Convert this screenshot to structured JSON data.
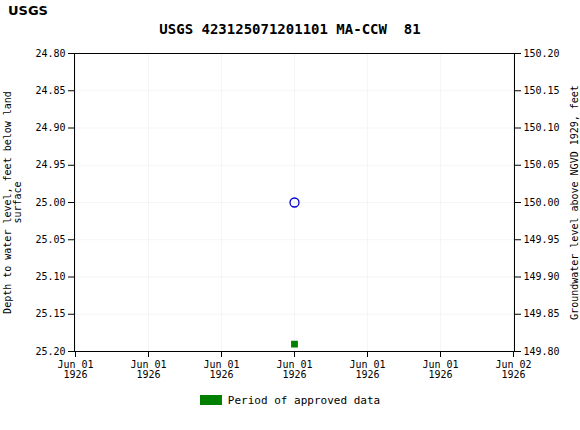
{
  "chart_data": {
    "type": "scatter",
    "title": "USGS 423125071201101 MA-CCW  81",
    "annotations": [
      "USGS"
    ],
    "y_label": "Depth to water level, feet below land\nsurface",
    "y2_label": "Groundwater level above NGVD 1929, feet",
    "categories": [
      "Jun 01\n1926",
      "Jun 01\n1926",
      "Jun 01\n1926",
      "Jun 01\n1926",
      "Jun 01\n1926",
      "Jun 01\n1926",
      "Jun 02\n1926"
    ],
    "series": [
      {
        "values": [
          null,
          null,
          null,
          25.0,
          null,
          null,
          null
        ],
        "color": "#0000cc",
        "marker": "circle"
      },
      {
        "name": "Period of approved data",
        "values": [
          null,
          null,
          null,
          25.19,
          null,
          null,
          null
        ],
        "color": "#008000",
        "marker": "square"
      }
    ],
    "ylim": [
      25.2,
      24.8
    ],
    "yticks": [
      {
        "value": 24.8,
        "label": "24.80"
      },
      {
        "value": 24.85,
        "label": "24.85"
      },
      {
        "value": 24.9,
        "label": "24.90"
      },
      {
        "value": 24.95,
        "label": "24.95"
      },
      {
        "value": 25.0,
        "label": "25.00"
      },
      {
        "value": 25.05,
        "label": "25.05"
      },
      {
        "value": 25.1,
        "label": "25.10"
      },
      {
        "value": 25.15,
        "label": "25.15"
      },
      {
        "value": 25.2,
        "label": "25.20"
      }
    ],
    "y2lim": [
      149.8,
      150.2
    ],
    "y2ticks": [
      {
        "value": 150.2,
        "label": "150.20"
      },
      {
        "value": 150.15,
        "label": "150.15"
      },
      {
        "value": 150.1,
        "label": "150.10"
      },
      {
        "value": 150.05,
        "label": "150.05"
      },
      {
        "value": 150.0,
        "label": "150.00"
      },
      {
        "value": 149.95,
        "label": "149.95"
      },
      {
        "value": 149.9,
        "label": "149.90"
      },
      {
        "value": 149.85,
        "label": "149.85"
      },
      {
        "value": 149.8,
        "label": "149.80"
      }
    ],
    "grid": true,
    "legend": "bottom"
  }
}
